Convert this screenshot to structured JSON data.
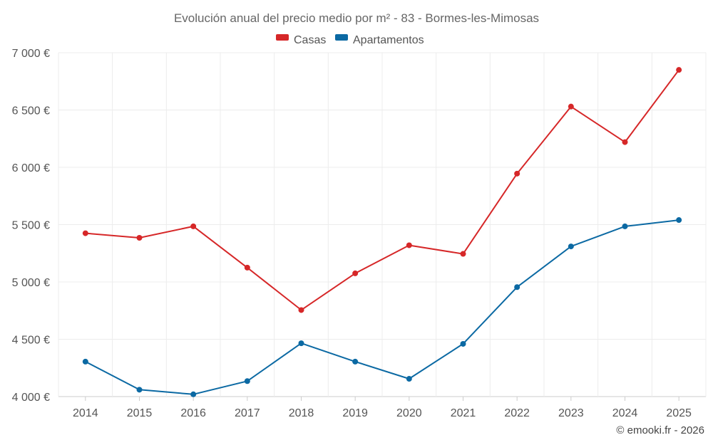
{
  "chart_data": {
    "type": "line",
    "title": "Evolución anual del precio medio por m² - 83 - Bormes-les-Mimosas",
    "categories": [
      "2014",
      "2015",
      "2016",
      "2017",
      "2018",
      "2019",
      "2020",
      "2021",
      "2022",
      "2023",
      "2024",
      "2025"
    ],
    "series": [
      {
        "name": "Casas",
        "color": "#d62728",
        "values": [
          5425,
          5385,
          5485,
          5125,
          4755,
          5075,
          5320,
          5245,
          5945,
          6530,
          6220,
          6850
        ]
      },
      {
        "name": "Apartamentos",
        "color": "#0b69a3",
        "values": [
          4305,
          4060,
          4020,
          4135,
          4465,
          4305,
          4155,
          4460,
          4955,
          5310,
          5485,
          5540
        ]
      }
    ],
    "ylim": [
      4000,
      7000
    ],
    "yticks": [
      4000,
      4500,
      5000,
      5500,
      6000,
      6500,
      7000
    ],
    "ytick_labels": [
      "4 000 €",
      "4 500 €",
      "5 000 €",
      "5 500 €",
      "6 000 €",
      "6 500 €",
      "7 000 €"
    ],
    "xlabel": "",
    "ylabel": "",
    "grid": true,
    "legend_position": "top-center",
    "credit": "© emooki.fr - 2026"
  }
}
